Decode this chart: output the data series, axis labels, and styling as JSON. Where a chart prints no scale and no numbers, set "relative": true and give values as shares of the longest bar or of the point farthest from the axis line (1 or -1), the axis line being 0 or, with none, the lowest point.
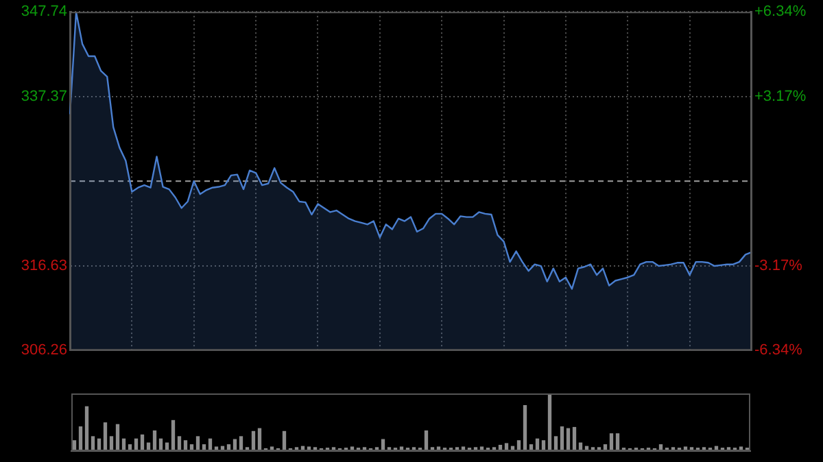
{
  "chart_data": [
    {
      "type": "area",
      "color": "#4a7fd0",
      "categories": [
        null,
        null,
        null,
        null,
        null,
        null,
        null,
        null,
        null,
        null,
        null,
        null,
        null,
        null,
        null,
        null,
        null,
        null,
        null,
        null,
        null,
        null,
        null,
        null,
        null,
        null,
        null,
        null,
        null,
        null,
        null,
        null,
        null,
        null,
        null,
        null,
        null,
        null,
        null,
        null,
        null,
        null,
        null,
        null,
        null,
        null,
        null,
        null,
        null,
        null,
        null,
        null,
        null,
        null,
        null,
        null,
        null,
        null,
        null,
        null,
        null,
        null,
        null,
        null,
        null,
        null,
        null,
        null,
        null,
        null,
        null,
        null,
        null,
        null,
        null,
        null,
        null,
        null,
        null,
        null,
        null,
        null,
        null,
        null,
        null,
        null,
        null,
        null,
        null,
        null,
        null,
        null,
        null,
        null,
        null,
        null,
        null,
        null,
        null,
        null,
        null,
        null,
        null,
        null,
        null,
        null,
        null,
        null,
        null,
        null,
        null
      ],
      "values": [
        335.2,
        347.7,
        343.8,
        342.3,
        342.3,
        340.5,
        339.8,
        333.6,
        331.1,
        329.5,
        325.7,
        326.2,
        326.5,
        326.2,
        330,
        326.3,
        326,
        325,
        323.7,
        324.5,
        327,
        325.4,
        325.9,
        326.2,
        326.3,
        326.5,
        327.7,
        327.8,
        326,
        328.3,
        328,
        326.5,
        326.7,
        328.6,
        326.8,
        326.2,
        325.7,
        324.5,
        324.4,
        322.9,
        324.2,
        323.7,
        323.2,
        323.4,
        322.9,
        322.4,
        322.1,
        321.9,
        321.7,
        322.1,
        320.1,
        321.7,
        321.1,
        322.4,
        322.1,
        322.6,
        320.8,
        321.2,
        322.4,
        323,
        323,
        322.4,
        321.7,
        322.7,
        322.6,
        322.6,
        323.2,
        323,
        322.9,
        320.4,
        319.6,
        317.1,
        318.4,
        317.1,
        316,
        316.8,
        316.6,
        314.7,
        316.3,
        314.7,
        315.2,
        313.8,
        316.3,
        316.5,
        316.8,
        315.5,
        316.3,
        314.2,
        314.8,
        315,
        315.2,
        315.5,
        316.8,
        317.1,
        317.1,
        316.6,
        316.7,
        316.8,
        317,
        317,
        315.5,
        317.1,
        317.1,
        317,
        316.6,
        316.7,
        316.8,
        316.8,
        317.1,
        318,
        318.3
      ],
      "ylim": [
        306.26,
        347.74
      ],
      "yticks": [
        306.26,
        316.63,
        337.37,
        347.74
      ],
      "y2lim": [
        -6.34,
        6.34
      ],
      "y2ticks": [
        {
          "value": -6.34,
          "label": "-6.34%"
        },
        {
          "value": -3.17,
          "label": "-3.17%"
        },
        {
          "value": 3.17,
          "label": "+3.17%"
        },
        {
          "value": 6.34,
          "label": "+6.34%"
        }
      ],
      "ref_lines": [
        {
          "axis": "y",
          "value": 327,
          "line_style": "dashed"
        }
      ],
      "grid": true
    },
    {
      "type": "bar",
      "relative": true,
      "color": "#8c8c8c",
      "categories": [
        null,
        null,
        null,
        null,
        null,
        null,
        null,
        null,
        null,
        null,
        null,
        null,
        null,
        null,
        null,
        null,
        null,
        null,
        null,
        null,
        null,
        null,
        null,
        null,
        null,
        null,
        null,
        null,
        null,
        null,
        null,
        null,
        null,
        null,
        null,
        null,
        null,
        null,
        null,
        null,
        null,
        null,
        null,
        null,
        null,
        null,
        null,
        null,
        null,
        null,
        null,
        null,
        null,
        null,
        null,
        null,
        null,
        null,
        null,
        null,
        null,
        null,
        null,
        null,
        null,
        null,
        null,
        null,
        null,
        null,
        null,
        null,
        null,
        null,
        null,
        null,
        null,
        null,
        null,
        null,
        null,
        null,
        null,
        null,
        null,
        null,
        null,
        null,
        null,
        null,
        null,
        null,
        null,
        null,
        null,
        null,
        null,
        null,
        null,
        null,
        null,
        null,
        null,
        null,
        null,
        null,
        null,
        null,
        null,
        null
      ],
      "values": [
        0.18,
        0.42,
        0.77,
        0.25,
        0.21,
        0.49,
        0.25,
        0.46,
        0.21,
        0.11,
        0.21,
        0.28,
        0.14,
        0.35,
        0.21,
        0.14,
        0.53,
        0.25,
        0.18,
        0.11,
        0.25,
        0.11,
        0.21,
        0.07,
        0.08,
        0.11,
        0.2,
        0.25,
        0.06,
        0.34,
        0.39,
        0.04,
        0.07,
        0.04,
        0.34,
        0.04,
        0.06,
        0.08,
        0.07,
        0.06,
        0.04,
        0.05,
        0.06,
        0.04,
        0.05,
        0.07,
        0.05,
        0.06,
        0.04,
        0.06,
        0.2,
        0.06,
        0.05,
        0.07,
        0.05,
        0.06,
        0.05,
        0.35,
        0.06,
        0.07,
        0.05,
        0.05,
        0.06,
        0.07,
        0.05,
        0.06,
        0.07,
        0.05,
        0.06,
        0.1,
        0.13,
        0.08,
        0.18,
        0.79,
        0.11,
        0.21,
        0.18,
        1,
        0.25,
        0.42,
        0.39,
        0.41,
        0.14,
        0.08,
        0.06,
        0.06,
        0.11,
        0.3,
        0.3,
        0.05,
        0.04,
        0.05,
        0.04,
        0.05,
        0.04,
        0.11,
        0.05,
        0.06,
        0.05,
        0.07,
        0.06,
        0.05,
        0.06,
        0.05,
        0.08,
        0.05,
        0.06,
        0.05,
        0.07,
        0.05
      ]
    }
  ]
}
